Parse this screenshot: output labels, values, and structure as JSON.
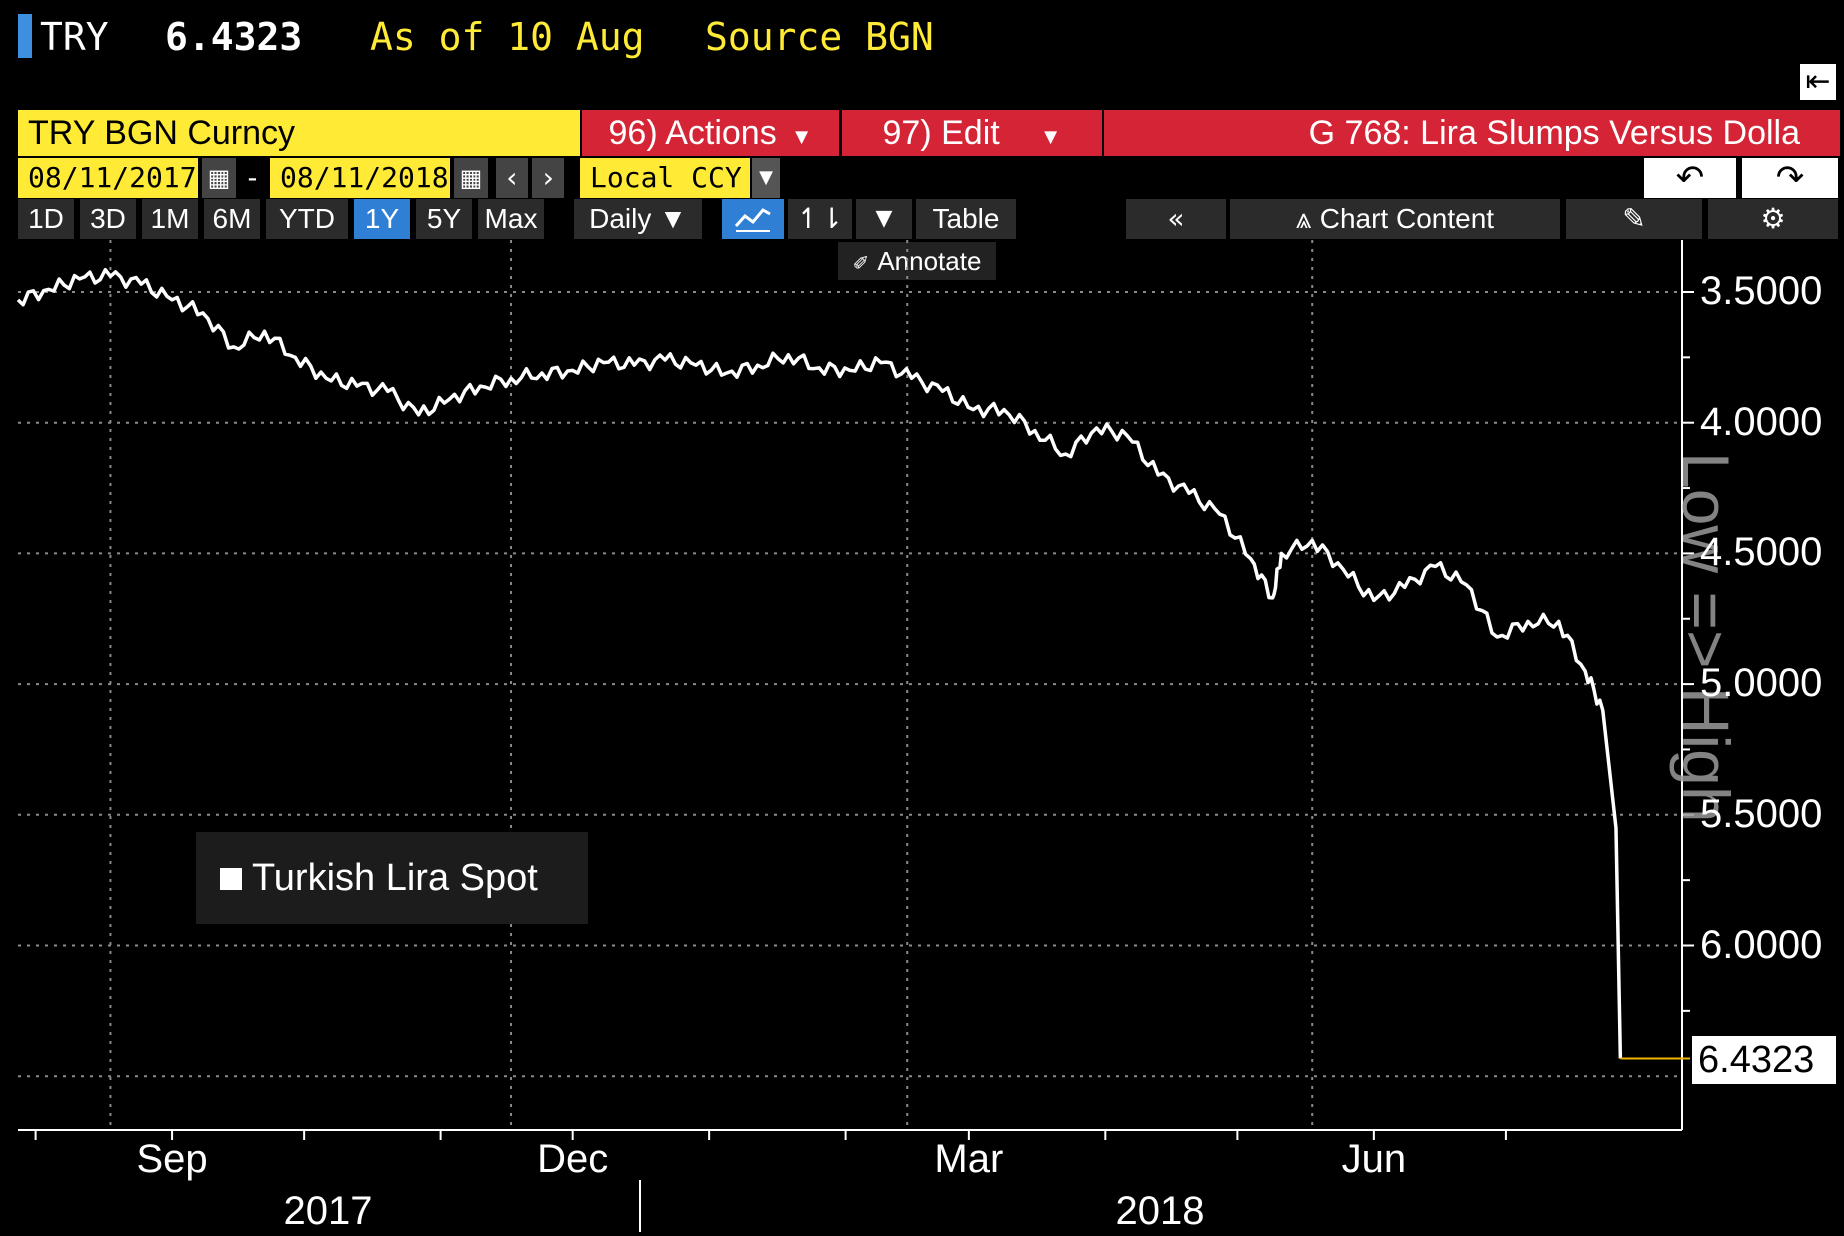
{
  "header": {
    "ticker": "TRY",
    "last": "6.4323",
    "as_of": "As of 10 Aug",
    "source": "Source BGN"
  },
  "toolbar1": {
    "security": "TRY BGN Curncy",
    "actions": "96) Actions",
    "edit": "97) Edit",
    "title": "G 768: Lira Slumps Versus Dolla"
  },
  "toolbar2": {
    "start_date": "08/11/2017",
    "dash": "-",
    "end_date": "08/11/2018",
    "currency": "Local CCY"
  },
  "toolbar3": {
    "periods": [
      "1D",
      "3D",
      "1M",
      "6M",
      "YTD",
      "1Y",
      "5Y",
      "Max"
    ],
    "active_period": "1Y",
    "frequency": "Daily ▼",
    "table": "Table",
    "chart_content": "Chart Content",
    "annotate": "Annotate"
  },
  "colors": {
    "accent_yellow": "#ffeb35",
    "accent_red": "#d42436",
    "button_dark": "#2b2b2b",
    "active_blue": "#2f7fd4",
    "line": "#ffffff",
    "last_line": "#f0b400"
  },
  "chart_data": {
    "type": "line",
    "title": "",
    "xlabel": "",
    "ylabel": "Low => High",
    "inverted_y": true,
    "ylim": [
      3.3,
      6.5
    ],
    "y_ticks": [
      "3.5000",
      "4.0000",
      "4.5000",
      "5.0000",
      "5.5000",
      "6.0000"
    ],
    "x_month_labels": [
      "Sep",
      "Dec",
      "Mar",
      "Jun"
    ],
    "x_year_labels": [
      "2017",
      "2018"
    ],
    "legend": {
      "position": "bottom-left",
      "entries": [
        "Turkish Lira Spot"
      ]
    },
    "last_value_label": "6.4323",
    "grid": true,
    "series": [
      {
        "name": "Turkish Lira Spot",
        "x": [
          "2017-08-11",
          "2017-08-18",
          "2017-08-25",
          "2017-09-01",
          "2017-09-08",
          "2017-09-15",
          "2017-09-22",
          "2017-09-29",
          "2017-10-06",
          "2017-10-13",
          "2017-10-20",
          "2017-10-27",
          "2017-11-03",
          "2017-11-10",
          "2017-11-17",
          "2017-11-24",
          "2017-12-01",
          "2017-12-08",
          "2017-12-15",
          "2017-12-22",
          "2017-12-29",
          "2018-01-05",
          "2018-01-12",
          "2018-01-19",
          "2018-01-26",
          "2018-02-02",
          "2018-02-09",
          "2018-02-16",
          "2018-02-23",
          "2018-03-02",
          "2018-03-09",
          "2018-03-16",
          "2018-03-23",
          "2018-03-30",
          "2018-04-06",
          "2018-04-13",
          "2018-04-20",
          "2018-04-27",
          "2018-05-04",
          "2018-05-11",
          "2018-05-18",
          "2018-05-23",
          "2018-05-25",
          "2018-06-01",
          "2018-06-08",
          "2018-06-15",
          "2018-06-22",
          "2018-06-29",
          "2018-07-06",
          "2018-07-13",
          "2018-07-20",
          "2018-07-27",
          "2018-08-02",
          "2018-08-06",
          "2018-08-09",
          "2018-08-10"
        ],
        "values": [
          3.53,
          3.49,
          3.45,
          3.44,
          3.47,
          3.53,
          3.58,
          3.71,
          3.65,
          3.75,
          3.83,
          3.86,
          3.88,
          3.97,
          3.91,
          3.86,
          3.83,
          3.81,
          3.8,
          3.77,
          3.78,
          3.76,
          3.78,
          3.81,
          3.78,
          3.74,
          3.79,
          3.8,
          3.77,
          3.83,
          3.88,
          3.95,
          3.95,
          4.03,
          4.12,
          4.02,
          4.05,
          4.2,
          4.27,
          4.35,
          4.52,
          4.67,
          4.5,
          4.45,
          4.56,
          4.68,
          4.63,
          4.55,
          4.62,
          4.82,
          4.76,
          4.76,
          4.95,
          5.1,
          5.55,
          6.4323
        ]
      }
    ]
  }
}
